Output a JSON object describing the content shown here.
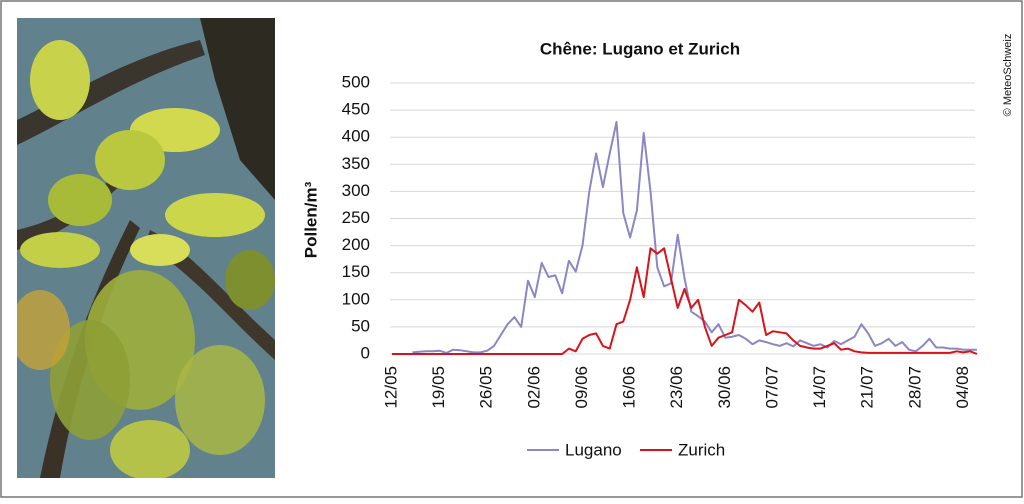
{
  "chart_data": {
    "type": "line",
    "title": "Chêne: Lugano et Zurich",
    "y_label": "Pollen/m³",
    "credit": "© MeteoSchweiz",
    "categories": [
      "12/05",
      null,
      null,
      null,
      null,
      null,
      null,
      "19/05",
      null,
      null,
      null,
      null,
      null,
      null,
      "26/05",
      null,
      null,
      null,
      null,
      null,
      null,
      "02/06",
      null,
      null,
      null,
      null,
      null,
      null,
      "09/06",
      null,
      null,
      null,
      null,
      null,
      null,
      "16/06",
      null,
      null,
      null,
      null,
      null,
      null,
      "23/06",
      null,
      null,
      null,
      null,
      null,
      null,
      "30/06",
      null,
      null,
      null,
      null,
      null,
      null,
      "07/07",
      null,
      null,
      null,
      null,
      null,
      null,
      "14/07",
      null,
      null,
      null,
      null,
      null,
      null,
      "21/07",
      null,
      null,
      null,
      null,
      null,
      null,
      "28/07",
      null,
      null,
      null,
      null,
      null,
      null,
      "04/08",
      null,
      null
    ],
    "series": [
      {
        "name": "Lugano",
        "color": "#8b87c6",
        "values": [
          null,
          null,
          null,
          3,
          4,
          5,
          5,
          6,
          2,
          8,
          7,
          5,
          3,
          3,
          6,
          15,
          35,
          55,
          68,
          50,
          135,
          105,
          168,
          142,
          145,
          112,
          172,
          152,
          200,
          300,
          370,
          308,
          370,
          428,
          260,
          215,
          265,
          408,
          300,
          160,
          125,
          130,
          220,
          140,
          78,
          70,
          60,
          40,
          55,
          30,
          32,
          35,
          28,
          18,
          25,
          22,
          18,
          15,
          20,
          14,
          25,
          20,
          15,
          18,
          12,
          24,
          18,
          25,
          32,
          55,
          38,
          15,
          20,
          28,
          15,
          22,
          8,
          5,
          15,
          28,
          12,
          12,
          10,
          10,
          8,
          8,
          8
        ]
      },
      {
        "name": "Zurich",
        "color": "#d7141a",
        "values": [
          0,
          0,
          0,
          0,
          0,
          0,
          0,
          0,
          0,
          0,
          0,
          0,
          0,
          0,
          0,
          0,
          0,
          0,
          0,
          0,
          0,
          0,
          0,
          0,
          0,
          0,
          10,
          5,
          28,
          35,
          38,
          15,
          10,
          55,
          60,
          100,
          160,
          105,
          195,
          185,
          195,
          140,
          85,
          120,
          85,
          100,
          50,
          15,
          30,
          35,
          40,
          100,
          90,
          78,
          95,
          35,
          42,
          40,
          38,
          25,
          15,
          12,
          10,
          10,
          15,
          20,
          8,
          10,
          5,
          3,
          2,
          2,
          2,
          2,
          2,
          2,
          2,
          2,
          2,
          2,
          2,
          2,
          2,
          5,
          3,
          5,
          0
        ]
      }
    ],
    "ylim": [
      0,
      500
    ],
    "yticks": [
      0,
      50,
      100,
      150,
      200,
      250,
      300,
      350,
      400,
      450,
      500
    ],
    "grid": true
  }
}
